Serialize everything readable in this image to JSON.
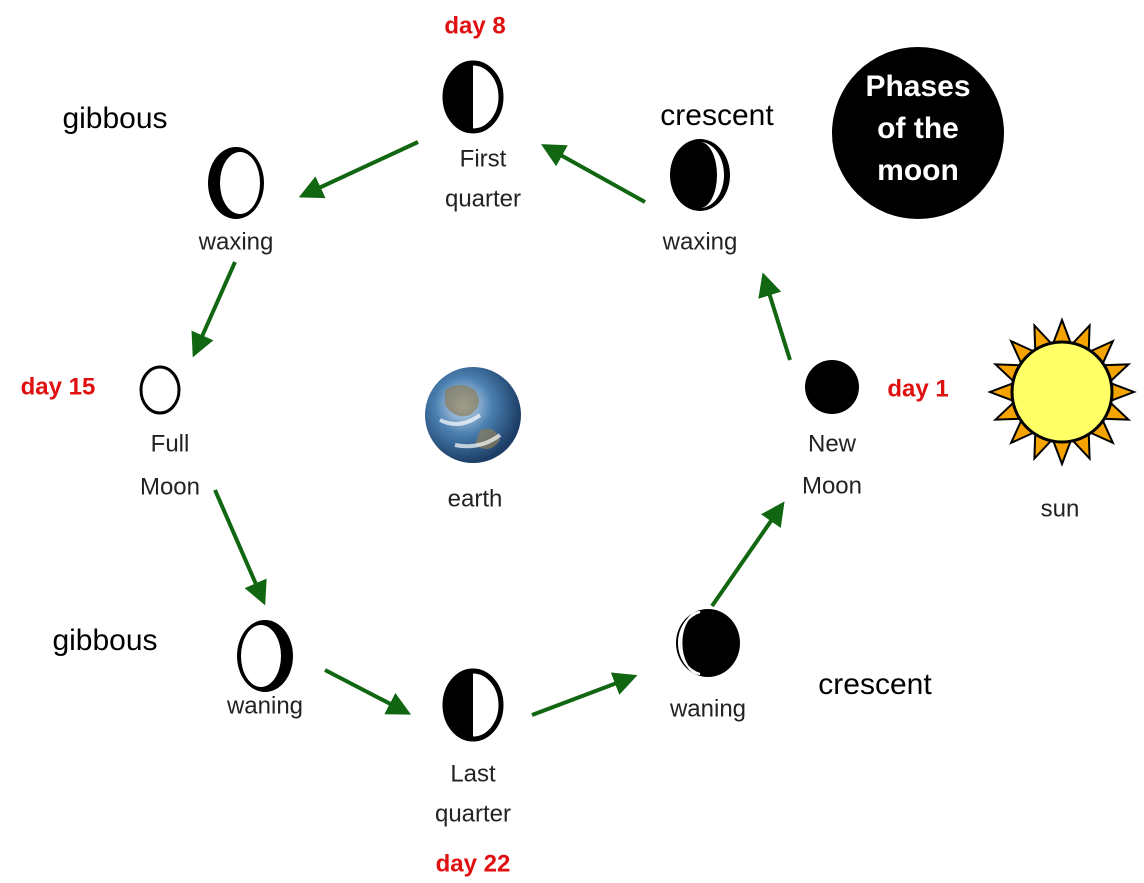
{
  "title": [
    "Phases",
    "of the",
    "moon"
  ],
  "phases": [
    {
      "label": [
        "New",
        "Moon"
      ],
      "day": "day 1"
    },
    {
      "label": [
        "waxing"
      ],
      "note": "crescent"
    },
    {
      "label": [
        "First",
        "quarter"
      ],
      "day": "day 8"
    },
    {
      "label": [
        "waxing"
      ],
      "note": "gibbous"
    },
    {
      "label": [
        "Full",
        "Moon"
      ],
      "day": "day 15"
    },
    {
      "label": [
        "waning"
      ],
      "note": "gibbous"
    },
    {
      "label": [
        "Last",
        "quarter"
      ],
      "day": "day 22"
    },
    {
      "label": [
        "waning"
      ],
      "note": "crescent"
    }
  ],
  "earth": "earth",
  "sun": "sun"
}
